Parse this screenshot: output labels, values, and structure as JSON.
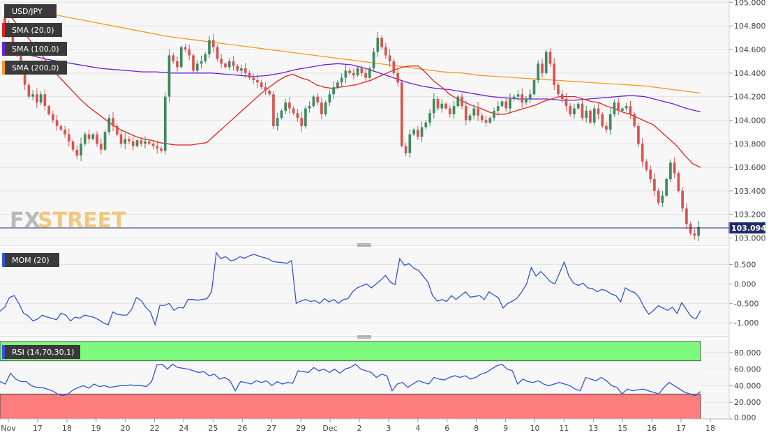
{
  "chart_data": [
    {
      "type": "candlestick",
      "symbol": "USD/JPY",
      "indicators": [
        {
          "name": "SMA (20,0)",
          "color": "#e8221c"
        },
        {
          "name": "SMA (100,0)",
          "color": "#6a1fd8"
        },
        {
          "name": "SMA (200,0)",
          "color": "#f59a1e"
        }
      ],
      "watermark": {
        "part1": "FX",
        "part2": "STREET"
      },
      "last_price": "103.094",
      "ylim": [
        102.95,
        105.02
      ],
      "y_ticks": [
        "105.000",
        "104.800",
        "104.600",
        "104.400",
        "104.200",
        "104.000",
        "103.800",
        "103.600",
        "103.400",
        "103.200",
        "103.000"
      ],
      "x_ticks": [
        "Nov",
        "17",
        "18",
        "19",
        "20",
        "22",
        "24",
        "25",
        "26",
        "27",
        "29",
        "Dec",
        "2",
        "3",
        "4",
        "6",
        "8",
        "9",
        "10",
        "11",
        "13",
        "15",
        "16",
        "17",
        "18"
      ],
      "close": [
        104.82,
        104.72,
        104.6,
        104.55,
        104.45,
        104.3,
        104.2,
        104.22,
        104.15,
        104.22,
        104.12,
        104.05,
        104.0,
        103.95,
        103.92,
        103.88,
        103.82,
        103.75,
        103.7,
        103.8,
        103.88,
        103.84,
        103.88,
        103.8,
        103.75,
        103.9,
        104.02,
        103.95,
        103.88,
        103.8,
        103.84,
        103.82,
        103.78,
        103.83,
        103.8,
        103.82,
        103.8,
        103.78,
        103.76,
        103.74,
        104.2,
        104.55,
        104.5,
        104.45,
        104.62,
        104.6,
        104.55,
        104.42,
        104.48,
        104.5,
        104.56,
        104.68,
        104.62,
        104.52,
        104.48,
        104.45,
        104.5,
        104.46,
        104.42,
        104.44,
        104.4,
        104.36,
        104.34,
        104.32,
        104.28,
        104.25,
        104.22,
        103.95,
        104.02,
        104.08,
        104.15,
        104.1,
        104.06,
        104.02,
        103.95,
        104.1,
        104.12,
        104.2,
        104.15,
        104.05,
        104.15,
        104.22,
        104.28,
        104.32,
        104.36,
        104.42,
        104.4,
        104.38,
        104.44,
        104.4,
        104.36,
        104.44,
        104.58,
        104.7,
        104.62,
        104.55,
        104.5,
        104.4,
        104.32,
        103.78,
        103.72,
        103.88,
        103.92,
        103.86,
        103.94,
        103.98,
        104.06,
        104.18,
        104.1,
        104.14,
        104.1,
        104.05,
        104.12,
        104.2,
        104.12,
        104.0,
        104.04,
        104.1,
        104.04,
        104.0,
        103.98,
        104.02,
        104.08,
        104.12,
        104.16,
        104.1,
        104.18,
        104.2,
        104.22,
        104.15,
        104.18,
        104.22,
        104.34,
        104.48,
        104.4,
        104.58,
        104.48,
        104.3,
        104.22,
        104.18,
        104.12,
        104.05,
        104.1,
        104.14,
        104.02,
        104.08,
        103.98,
        104.1,
        104.05,
        103.95,
        103.92,
        104.05,
        104.15,
        104.08,
        104.1,
        104.12,
        104.05,
        103.95,
        103.8,
        103.65,
        103.58,
        103.5,
        103.4,
        103.3,
        103.36,
        103.5,
        103.64,
        103.55,
        103.4,
        103.25,
        103.12,
        103.04,
        103.02,
        103.094
      ],
      "sma20": [
        104.95,
        104.88,
        104.8,
        104.72,
        104.63,
        104.55,
        104.46,
        104.38,
        104.31,
        104.24,
        104.17,
        104.11,
        104.06,
        104.01,
        103.96,
        103.92,
        103.89,
        103.86,
        103.84,
        103.83,
        103.81,
        103.8,
        103.79,
        103.79,
        103.79,
        103.8,
        103.81,
        103.87,
        103.93,
        103.99,
        104.05,
        104.11,
        104.17,
        104.23,
        104.28,
        104.33,
        104.37,
        104.39,
        104.36,
        104.34,
        104.3,
        104.28,
        104.27,
        104.28,
        104.29,
        104.3,
        104.32,
        104.34,
        104.37,
        104.4,
        104.43,
        104.45,
        104.46,
        104.46,
        104.4,
        104.33,
        104.28,
        104.22,
        104.18,
        104.15,
        104.12,
        104.1,
        104.07,
        104.05,
        104.05,
        104.07,
        104.09,
        104.11,
        104.13,
        104.16,
        104.18,
        104.2,
        104.2,
        104.2,
        104.18,
        104.16,
        104.15,
        104.12,
        104.1,
        104.07,
        104.05,
        104.02,
        103.99,
        103.96,
        103.9,
        103.84,
        103.78,
        103.7,
        103.63,
        103.6
      ],
      "sma100": [
        104.6,
        104.58,
        104.55,
        104.52,
        104.5,
        104.48,
        104.46,
        104.44,
        104.43,
        104.42,
        104.41,
        104.41,
        104.4,
        104.4,
        104.4,
        104.4,
        104.39,
        104.38,
        104.37,
        104.38,
        104.4,
        104.43,
        104.45,
        104.47,
        104.48,
        104.47,
        104.44,
        104.4,
        104.36,
        104.32,
        104.29,
        104.27,
        104.26,
        104.24,
        104.22,
        104.2,
        104.19,
        104.18,
        104.18,
        104.18,
        104.17,
        104.17,
        104.18,
        104.19,
        104.2,
        104.21,
        104.2,
        104.17,
        104.14,
        104.1,
        104.07
      ],
      "sma200": [
        104.98,
        104.95,
        104.92,
        104.89,
        104.86,
        104.83,
        104.8,
        104.77,
        104.74,
        104.71,
        104.69,
        104.67,
        104.65,
        104.63,
        104.61,
        104.59,
        104.57,
        104.55,
        104.53,
        104.51,
        104.49,
        104.47,
        104.45,
        104.43,
        104.41,
        104.4,
        104.38,
        104.37,
        104.36,
        104.35,
        104.34,
        104.33,
        104.32,
        104.31,
        104.3,
        104.29,
        104.27,
        104.25,
        104.23
      ],
      "colors": {
        "up": "#3e8a5e",
        "down": "#d9534f",
        "price_line": "#1f2a6b",
        "grid": "#e3e3e3"
      }
    },
    {
      "type": "line",
      "series": [
        {
          "name": "MOM (20)",
          "color": "#2f54d8"
        }
      ],
      "ylim": [
        -1.3,
        0.92
      ],
      "y_ticks": [
        "0.500",
        "0.000",
        "-0.500",
        "-1.000"
      ],
      "values": [
        -0.7,
        -0.6,
        -0.35,
        -0.3,
        -0.5,
        -0.75,
        -0.82,
        -0.95,
        -0.9,
        -0.8,
        -0.85,
        -0.88,
        -0.92,
        -0.75,
        -0.8,
        -0.95,
        -0.85,
        -0.88,
        -0.8,
        -0.83,
        -0.86,
        -0.92,
        -1.0,
        -1.05,
        -0.72,
        -0.78,
        -0.8,
        -0.8,
        -0.65,
        -0.35,
        -0.42,
        -0.6,
        -0.72,
        -1.05,
        -0.55,
        -0.55,
        -0.5,
        -0.68,
        -0.6,
        -0.62,
        -0.4,
        -0.4,
        -0.42,
        -0.4,
        -0.38,
        -0.2,
        0.8,
        0.65,
        0.7,
        0.6,
        0.62,
        0.7,
        0.66,
        0.72,
        0.76,
        0.72,
        0.68,
        0.65,
        0.58,
        0.56,
        0.55,
        0.53,
        0.6,
        -0.5,
        -0.44,
        -0.4,
        -0.45,
        -0.43,
        -0.5,
        -0.38,
        -0.46,
        -0.4,
        -0.5,
        -0.4,
        -0.38,
        -0.2,
        -0.1,
        -0.05,
        0.0,
        -0.1,
        0.0,
        0.1,
        0.22,
        0.05,
        -0.02,
        0.65,
        0.48,
        0.52,
        0.4,
        0.35,
        0.2,
        0.05,
        -0.3,
        -0.44,
        -0.4,
        -0.45,
        -0.3,
        -0.4,
        -0.3,
        -0.2,
        -0.34,
        -0.32,
        -0.3,
        -0.4,
        -0.2,
        -0.28,
        -0.36,
        -0.62,
        -0.5,
        -0.44,
        -0.36,
        -0.2,
        0.0,
        0.42,
        0.2,
        0.32,
        0.2,
        0.06,
        0.0,
        0.28,
        0.56,
        0.2,
        0.02,
        -0.04,
        0.02,
        -0.1,
        -0.12,
        -0.2,
        -0.14,
        -0.18,
        -0.26,
        -0.3,
        -0.46,
        -0.1,
        -0.18,
        -0.22,
        -0.36,
        -0.6,
        -0.78,
        -0.68,
        -0.56,
        -0.62,
        -0.68,
        -0.6,
        -0.76,
        -0.48,
        -0.66,
        -0.84,
        -0.9,
        -0.68
      ]
    },
    {
      "type": "line",
      "series": [
        {
          "name": "RSI (14,70,30,1)",
          "color": "#2f54d8"
        }
      ],
      "ylim": [
        0,
        95
      ],
      "y_ticks": [
        "80.000",
        "60.000",
        "40.000",
        "20.000",
        "0.000"
      ],
      "bands": {
        "upper_zone": [
          70,
          100
        ],
        "lower_zone": [
          0,
          30
        ],
        "upper_color": "#7dfa7d",
        "lower_color": "#fb7d7d"
      },
      "values": [
        45,
        42,
        55,
        48,
        45,
        45,
        40,
        38,
        38,
        36,
        34,
        30,
        28,
        30,
        35,
        38,
        40,
        37,
        42,
        39,
        40,
        38,
        39,
        40,
        40,
        41,
        40,
        40,
        39,
        45,
        65,
        66,
        60,
        66,
        62,
        61,
        60,
        58,
        56,
        57,
        52,
        54,
        48,
        50,
        46,
        34,
        45,
        44,
        42,
        46,
        44,
        46,
        40,
        45,
        42,
        44,
        43,
        58,
        57,
        56,
        62,
        58,
        60,
        56,
        60,
        55,
        60,
        62,
        66,
        60,
        58,
        56,
        50,
        54,
        52,
        34,
        42,
        44,
        38,
        42,
        46,
        44,
        42,
        50,
        48,
        47,
        50,
        52,
        50,
        52,
        48,
        50,
        54,
        56,
        60,
        64,
        66,
        60,
        58,
        42,
        48,
        45,
        44,
        46,
        42,
        40,
        42,
        44,
        42,
        40,
        36,
        34,
        50,
        48,
        46,
        50,
        46,
        40,
        38,
        30,
        36,
        34,
        35,
        36,
        34,
        32,
        30,
        38,
        44,
        40,
        36,
        32,
        30,
        28,
        33
      ]
    }
  ]
}
